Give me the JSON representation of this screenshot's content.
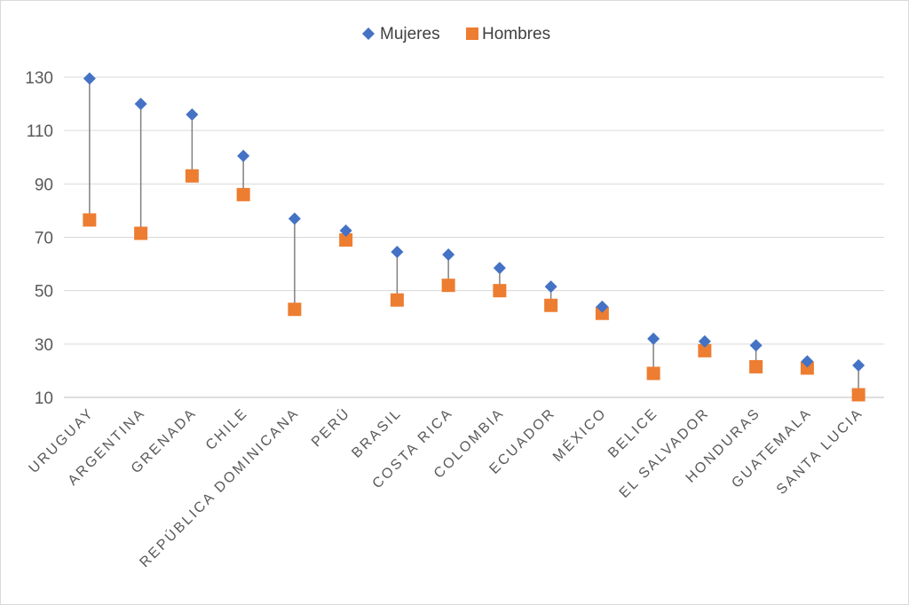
{
  "chart_data": {
    "type": "scatter",
    "categories": [
      "URUGUAY",
      "ARGENTINA",
      "GRENADA",
      "CHILE",
      "REPÚBLICA DOMINICANA",
      "PERÚ",
      "BRASIL",
      "COSTA RICA",
      "COLOMBIA",
      "ECUADOR",
      "MÉXICO",
      "BELICE",
      "EL SALVADOR",
      "HONDURAS",
      "GUATEMALA",
      "SANTA LUCIA"
    ],
    "series": [
      {
        "name": "Mujeres",
        "marker": "diamond",
        "color": "#4472C4",
        "values": [
          129.5,
          120,
          116,
          100.5,
          77,
          72.5,
          64.5,
          63.5,
          58.5,
          51.5,
          44,
          32,
          31,
          29.5,
          23.5,
          22
        ]
      },
      {
        "name": "Hombres",
        "marker": "square",
        "color": "#ED7D31",
        "values": [
          76.5,
          71.5,
          93,
          86,
          43,
          69,
          46.5,
          52,
          50,
          44.5,
          41.5,
          19,
          27.5,
          21.5,
          21,
          11
        ]
      }
    ],
    "connector_color": "#808080",
    "yticks": [
      10,
      30,
      50,
      70,
      90,
      110,
      130
    ],
    "ylim": [
      10,
      130
    ],
    "grid": true,
    "legend_position": "top-center",
    "title": "",
    "xlabel": "",
    "ylabel": ""
  }
}
